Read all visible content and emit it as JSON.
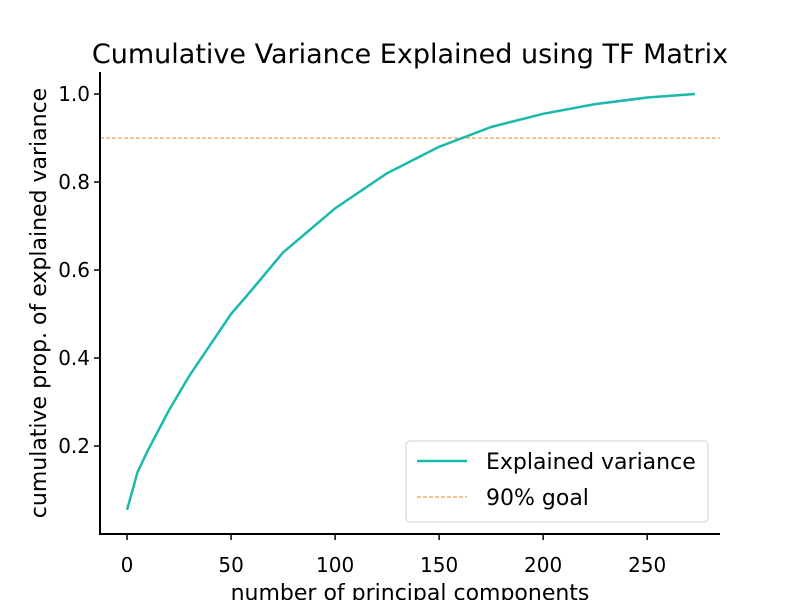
{
  "chart_data": {
    "type": "line",
    "title": "Cumulative Variance Explained using TF Matrix",
    "xlabel": "number of principal components",
    "ylabel": "cumulative prop. of explained variance",
    "xlim": [
      -13,
      285
    ],
    "ylim": [
      0.0,
      1.05
    ],
    "xticks": [
      0,
      50,
      100,
      150,
      200,
      250
    ],
    "yticks": [
      0.2,
      0.4,
      0.6,
      0.8,
      1.0
    ],
    "xtick_labels": [
      "0",
      "50",
      "100",
      "150",
      "200",
      "250"
    ],
    "ytick_labels": [
      "0.2",
      "0.4",
      "0.6",
      "0.8",
      "1.0"
    ],
    "grid": false,
    "legend": "lower-right",
    "series": [
      {
        "name": "Explained variance",
        "color": "#1ab9ab",
        "style": "solid",
        "x": [
          0,
          5,
          10,
          20,
          30,
          40,
          50,
          60,
          75,
          100,
          125,
          150,
          175,
          200,
          225,
          250,
          273
        ],
        "y": [
          0.055,
          0.14,
          0.19,
          0.28,
          0.36,
          0.43,
          0.5,
          0.555,
          0.64,
          0.74,
          0.82,
          0.88,
          0.925,
          0.955,
          0.977,
          0.992,
          1.0
        ]
      },
      {
        "name": "90% goal",
        "color": "#f0a050",
        "style": "dashed",
        "x": [
          -13,
          285
        ],
        "y": [
          0.9,
          0.9
        ]
      }
    ]
  }
}
